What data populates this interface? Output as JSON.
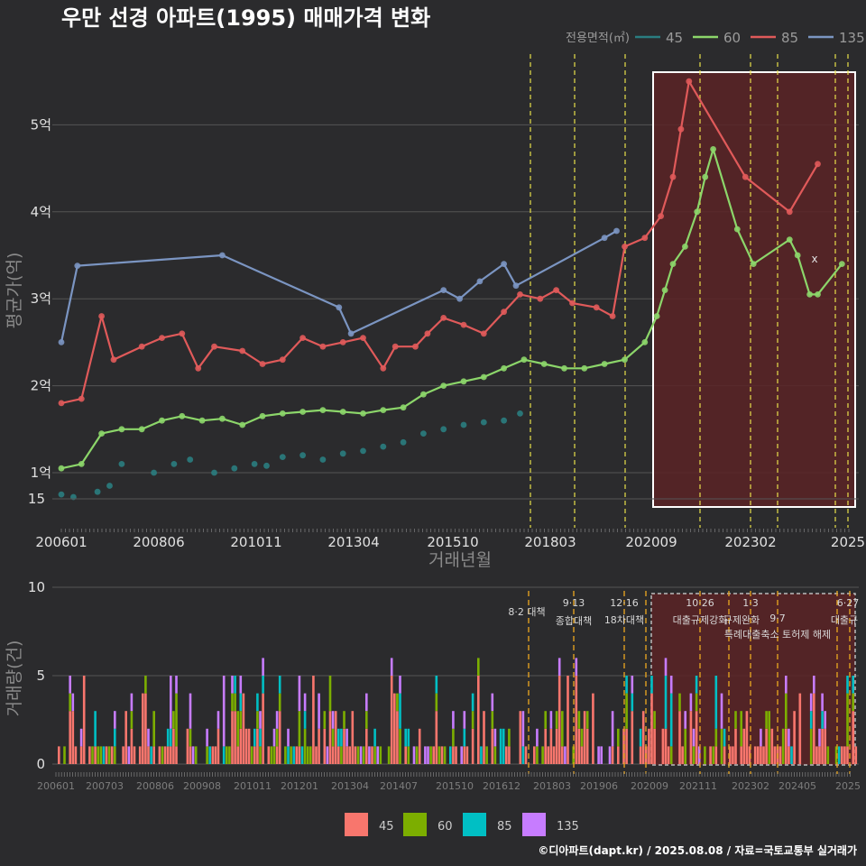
{
  "title": "우만 선경 아파트(1995) 매매가격 변화",
  "footer": "©디아파트(dapt.kr) / 2025.08.08 / 자료=국토교통부 실거래가",
  "colors": {
    "background": "#2b2b2d",
    "s45_line": "#2a7d80",
    "s60_line": "#8cd66a",
    "s85_line": "#e05a5a",
    "s135_line": "#7b95c2",
    "s45_bar": "#f8766d",
    "s60_bar": "#7cae00",
    "s85_bar": "#00bfc4",
    "s135_bar": "#c77cff",
    "event_line": "#e8e04a",
    "event_line_bottom": "#e0a020",
    "highlight_fill": "#5a2326",
    "highlight_border": "#ffffff"
  },
  "chart_data": [
    {
      "type": "line",
      "title": "우만 선경 아파트(1995) 매매가격 변화",
      "xlabel": "거래년월",
      "ylabel": "평균가(억)",
      "x_ticks": [
        "200601",
        "200806",
        "201011",
        "201304",
        "201510",
        "201803",
        "202009",
        "202302",
        "2025"
      ],
      "y_ticks": [
        "1억",
        "2억",
        "3억",
        "4억",
        "5억"
      ],
      "ylim": [
        0.4,
        5.7
      ],
      "legend_title": "전용면적(㎡)",
      "legend_position": "top-right",
      "series": [
        {
          "name": "45",
          "values": [
            [
              2006.0,
              0.75
            ],
            [
              2006.3,
              0.72
            ],
            [
              2006.9,
              0.78
            ],
            [
              2007.2,
              0.85
            ],
            [
              2007.5,
              1.1
            ],
            [
              2008.3,
              1.0
            ],
            [
              2008.8,
              1.1
            ],
            [
              2009.2,
              1.15
            ],
            [
              2009.8,
              1.0
            ],
            [
              2010.3,
              1.05
            ],
            [
              2010.8,
              1.1
            ],
            [
              2011.1,
              1.08
            ],
            [
              2011.5,
              1.18
            ],
            [
              2012.0,
              1.2
            ],
            [
              2012.5,
              1.15
            ],
            [
              2013.0,
              1.22
            ],
            [
              2013.5,
              1.25
            ],
            [
              2014.0,
              1.3
            ],
            [
              2014.5,
              1.35
            ],
            [
              2015.0,
              1.45
            ],
            [
              2015.5,
              1.5
            ],
            [
              2016.0,
              1.55
            ],
            [
              2016.5,
              1.58
            ],
            [
              2017.0,
              1.6
            ],
            [
              2017.4,
              1.68
            ]
          ]
        },
        {
          "name": "60",
          "values": [
            [
              2006.0,
              1.05
            ],
            [
              2006.5,
              1.1
            ],
            [
              2007.0,
              1.45
            ],
            [
              2007.5,
              1.5
            ],
            [
              2008.0,
              1.5
            ],
            [
              2008.5,
              1.6
            ],
            [
              2009.0,
              1.65
            ],
            [
              2009.5,
              1.6
            ],
            [
              2010.0,
              1.62
            ],
            [
              2010.5,
              1.55
            ],
            [
              2011.0,
              1.65
            ],
            [
              2011.5,
              1.68
            ],
            [
              2012.0,
              1.7
            ],
            [
              2012.5,
              1.72
            ],
            [
              2013.0,
              1.7
            ],
            [
              2013.5,
              1.68
            ],
            [
              2014.0,
              1.72
            ],
            [
              2014.5,
              1.75
            ],
            [
              2015.0,
              1.9
            ],
            [
              2015.5,
              2.0
            ],
            [
              2016.0,
              2.05
            ],
            [
              2016.5,
              2.1
            ],
            [
              2017.0,
              2.2
            ],
            [
              2017.5,
              2.3
            ],
            [
              2018.0,
              2.25
            ],
            [
              2018.5,
              2.2
            ],
            [
              2019.0,
              2.2
            ],
            [
              2019.5,
              2.25
            ],
            [
              2020.0,
              2.3
            ],
            [
              2020.5,
              2.5
            ],
            [
              2020.8,
              2.8
            ],
            [
              2021.0,
              3.1
            ],
            [
              2021.2,
              3.4
            ],
            [
              2021.5,
              3.6
            ],
            [
              2021.8,
              4.0
            ],
            [
              2022.0,
              4.4
            ],
            [
              2022.2,
              4.72
            ],
            [
              2022.8,
              3.8
            ],
            [
              2023.2,
              3.4
            ],
            [
              2024.1,
              3.68
            ],
            [
              2024.3,
              3.5
            ],
            [
              2024.6,
              3.05
            ],
            [
              2024.8,
              3.05
            ],
            [
              2025.4,
              3.4
            ]
          ]
        },
        {
          "name": "85",
          "values": [
            [
              2006.0,
              1.8
            ],
            [
              2006.5,
              1.85
            ],
            [
              2007.0,
              2.8
            ],
            [
              2007.3,
              2.3
            ],
            [
              2008.0,
              2.45
            ],
            [
              2008.5,
              2.55
            ],
            [
              2009.0,
              2.6
            ],
            [
              2009.4,
              2.2
            ],
            [
              2009.8,
              2.45
            ],
            [
              2010.5,
              2.4
            ],
            [
              2011.0,
              2.25
            ],
            [
              2011.5,
              2.3
            ],
            [
              2012.0,
              2.55
            ],
            [
              2012.5,
              2.45
            ],
            [
              2013.0,
              2.5
            ],
            [
              2013.5,
              2.55
            ],
            [
              2014.0,
              2.2
            ],
            [
              2014.3,
              2.45
            ],
            [
              2014.8,
              2.45
            ],
            [
              2015.1,
              2.6
            ],
            [
              2015.5,
              2.78
            ],
            [
              2016.0,
              2.7
            ],
            [
              2016.5,
              2.6
            ],
            [
              2017.0,
              2.85
            ],
            [
              2017.4,
              3.05
            ],
            [
              2017.9,
              3.0
            ],
            [
              2018.3,
              3.1
            ],
            [
              2018.7,
              2.95
            ],
            [
              2019.3,
              2.9
            ],
            [
              2019.7,
              2.8
            ],
            [
              2020.0,
              3.6
            ],
            [
              2020.5,
              3.7
            ],
            [
              2020.9,
              3.95
            ],
            [
              2021.2,
              4.4
            ],
            [
              2021.4,
              4.95
            ],
            [
              2021.6,
              5.5
            ],
            [
              2023.0,
              4.4
            ],
            [
              2024.1,
              4.0
            ],
            [
              2024.8,
              4.55
            ]
          ]
        },
        {
          "name": "135",
          "values": [
            [
              2006.0,
              2.5
            ],
            [
              2006.4,
              3.38
            ],
            [
              2010.0,
              3.5
            ],
            [
              2012.9,
              2.9
            ],
            [
              2013.2,
              2.6
            ],
            [
              2015.5,
              3.1
            ],
            [
              2015.9,
              3.0
            ],
            [
              2016.4,
              3.2
            ],
            [
              2017.0,
              3.4
            ],
            [
              2017.3,
              3.15
            ],
            [
              2019.5,
              3.7
            ],
            [
              2019.8,
              3.78
            ]
          ]
        }
      ],
      "event_lines": [
        "201708",
        "201809",
        "201912",
        "202011",
        "202212",
        "202306",
        "202406",
        "202506"
      ],
      "annotation": "x"
    },
    {
      "type": "bar",
      "ylabel": "거래량(건)",
      "x_ticks": [
        "200601",
        "200703",
        "200806",
        "200908",
        "201011",
        "201201",
        "201304",
        "201407",
        "201510",
        "201612",
        "201803",
        "201906",
        "202009",
        "202111",
        "202302",
        "202405",
        "2025"
      ],
      "y_ticks": [
        "0",
        "5",
        "10",
        "15"
      ],
      "ylim": [
        0,
        19
      ],
      "legend_position": "bottom",
      "series_names": [
        "45",
        "60",
        "85",
        "135"
      ],
      "events": [
        {
          "date": "8·2 대책",
          "line2": ""
        },
        {
          "date": "9·13",
          "line2": "종합대책"
        },
        {
          "date": "12·16",
          "line2": "18차대책"
        },
        {
          "date": "10·26",
          "line2": "대출규제강화"
        },
        {
          "date": "1·3",
          "line2": "규제완화"
        },
        {
          "date": "9·7",
          "line2": "특례대출축소 토허제 해제"
        },
        {
          "date": "6·27",
          "line2": "대출규"
        }
      ]
    }
  ]
}
